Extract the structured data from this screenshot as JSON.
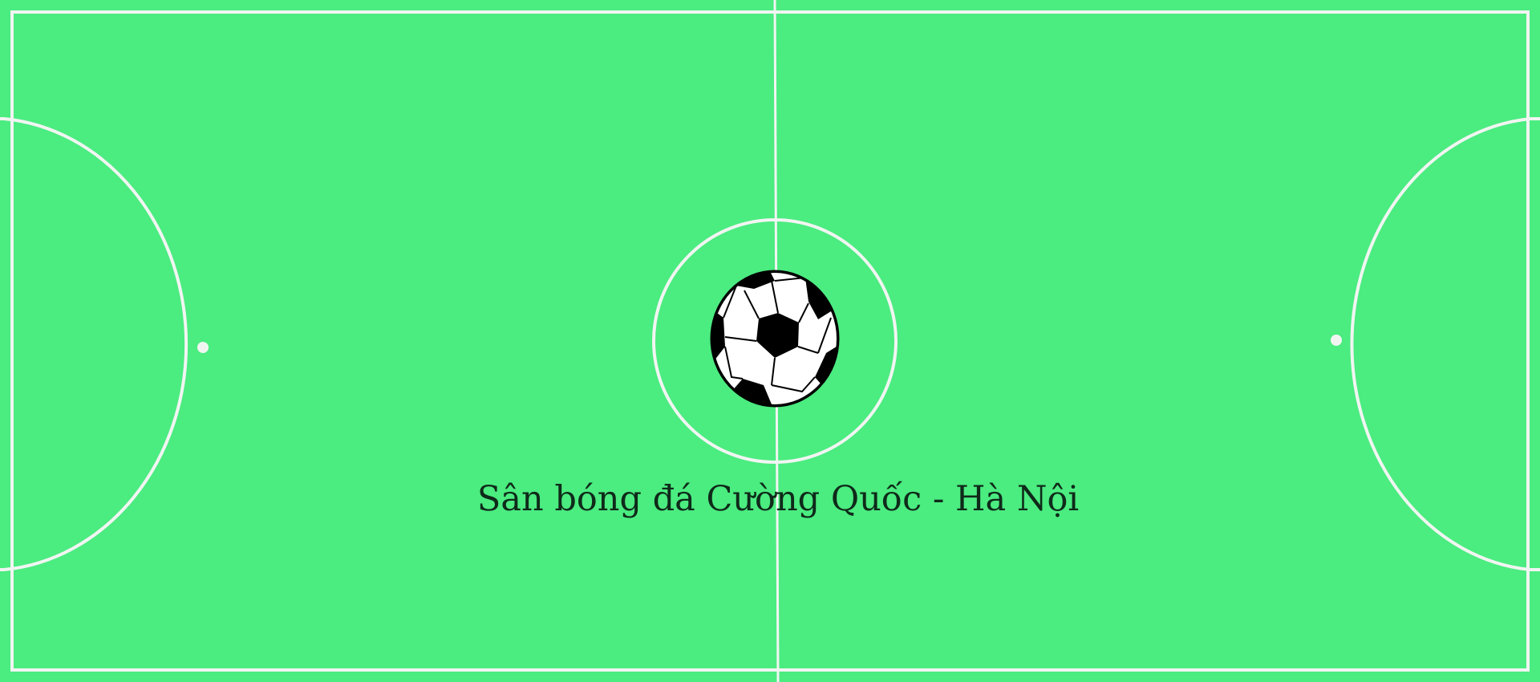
{
  "banner": {
    "title": "Sân bóng đá Cường Quốc - Hà Nội"
  },
  "colors": {
    "field": "#4bec80",
    "lines": "#f1f5f2",
    "text": "#0f2a1a",
    "ball_black": "#000000",
    "ball_white": "#ffffff"
  },
  "icons": {
    "ball": "soccer-ball-icon"
  }
}
